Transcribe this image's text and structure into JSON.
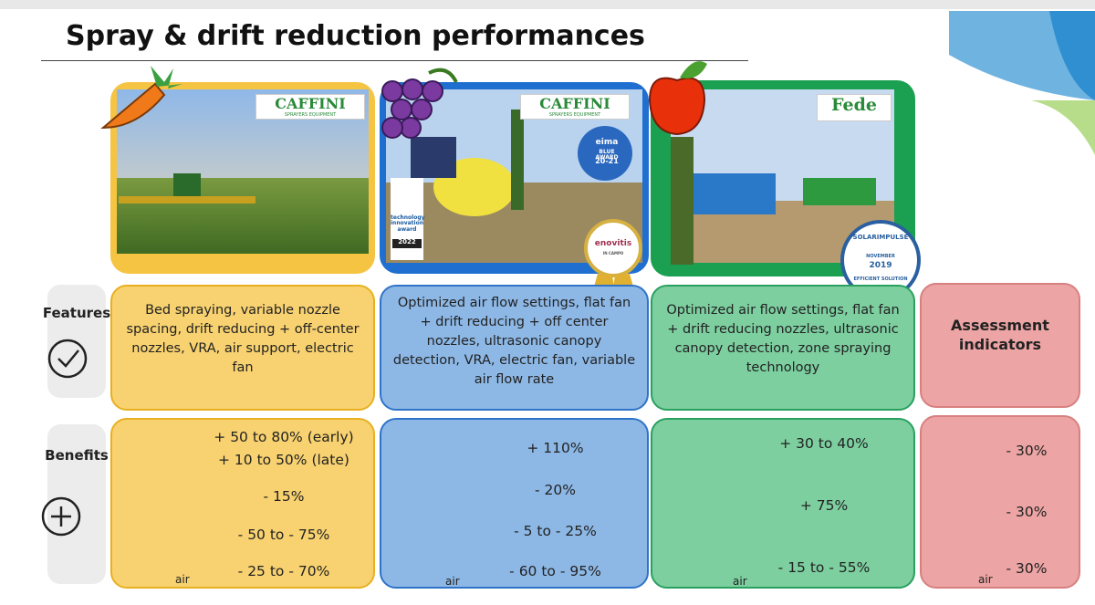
{
  "title": "Spray & drift reduction performances",
  "row_labels": {
    "features": "Features",
    "benefits": "Benefits"
  },
  "air_label": "air",
  "columns": [
    {
      "logo": "CAFFINI",
      "logo_sub": "SPRAYERS EQUIPMENT",
      "features": "Bed spraying, variable nozzle spacing, drift reducing + off-center nozzles, VRA, air support, electric fan",
      "benefits": [
        "+ 50 to 80% (early)",
        "+ 10 to 50% (late)",
        "- 15%",
        "- 50 to - 75%",
        "- 25 to - 70%"
      ]
    },
    {
      "logo": "CAFFINI",
      "logo_sub": "SPRAYERS EQUIPMENT",
      "badges": [
        "eima",
        "BLUE AWARD",
        "20-21",
        "technology innovation award",
        "2022",
        "enovitis",
        "IN CAMPO"
      ],
      "features": "Optimized air flow settings, flat fan + drift reducing + off center nozzles, ultrasonic canopy detection, VRA, electric fan, variable air flow rate",
      "benefits": [
        "+ 110%",
        "- 20%",
        "- 5 to - 25%",
        "- 60 to - 95%"
      ]
    },
    {
      "logo": "Fede",
      "badges": [
        "SOLARIMPULSE",
        "NOVEMBER",
        "2019",
        "EFFICIENT SOLUTION"
      ],
      "features": "Optimized air flow settings, flat fan + drift reducing nozzles, ultrasonic canopy detection, zone spraying technology",
      "benefits": [
        "+ 30 to 40%",
        "+ 75%",
        "- 15 to - 55%"
      ]
    }
  ],
  "assessment": {
    "title": "Assessment indicators",
    "benefits": [
      "- 30%",
      "- 30%",
      "- 30%"
    ]
  }
}
